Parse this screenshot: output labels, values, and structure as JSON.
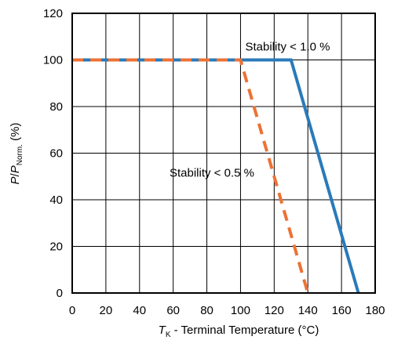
{
  "chart_data": {
    "type": "line",
    "xlabel": {
      "symbol": "T",
      "sub": "K",
      "text": " - Terminal Temperature (°C)"
    },
    "ylabel": {
      "symbol": "P",
      "slash": "/",
      "symbol2": "P",
      "sub": "Norm.",
      "text": " (%)"
    },
    "xlim": [
      0,
      180
    ],
    "ylim": [
      0,
      120
    ],
    "xticks": [
      "0",
      "20",
      "40",
      "60",
      "80",
      "100",
      "120",
      "140",
      "160",
      "180"
    ],
    "yticks": [
      "0",
      "20",
      "40",
      "60",
      "80",
      "100",
      "120"
    ],
    "grid": true,
    "series": [
      {
        "name": "Stability < 1.0 %",
        "color": "#2a7ab9",
        "style": "solid",
        "x": [
          0,
          130,
          170
        ],
        "y": [
          100,
          100,
          0
        ]
      },
      {
        "name": "Stability < 0.5 %",
        "color": "#ec7234",
        "style": "dashed",
        "x": [
          0,
          100,
          140
        ],
        "y": [
          100,
          100,
          0
        ]
      }
    ],
    "annotations": [
      {
        "text": "Stability < 1.0 %",
        "x": 128,
        "y": 104
      },
      {
        "text": "Stability < 0.5 %",
        "x": 83,
        "y": 50
      }
    ]
  }
}
